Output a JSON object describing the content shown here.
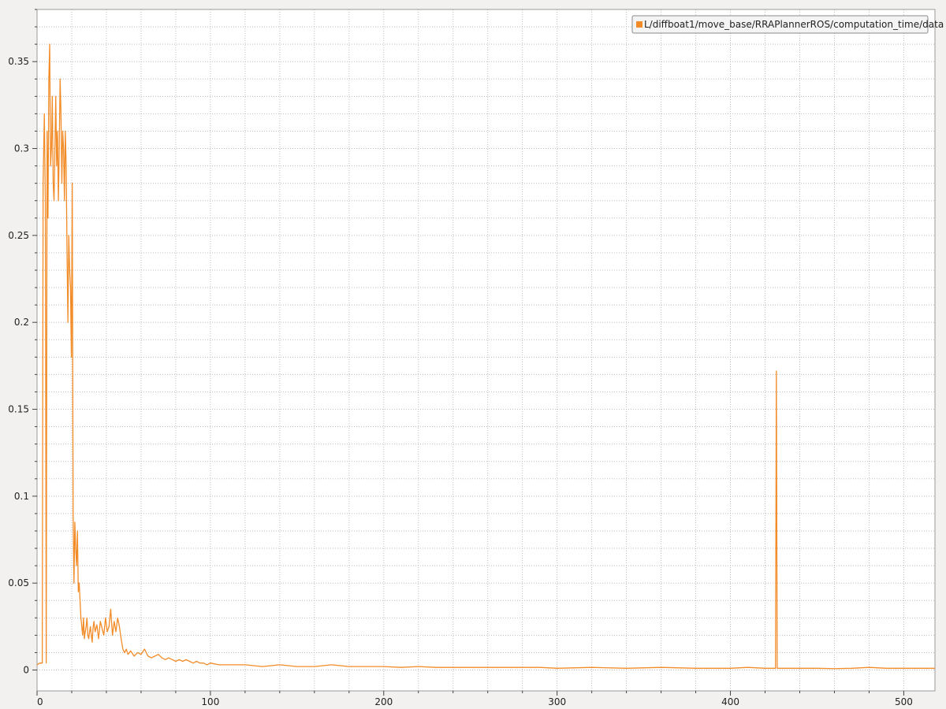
{
  "chart_data": {
    "type": "line",
    "title": "",
    "xlabel": "",
    "ylabel": "",
    "xlim": [
      0,
      518
    ],
    "ylim": [
      -0.012,
      0.38
    ],
    "grid": true,
    "legend_placement": "top-right",
    "x_ticks": [
      0,
      100,
      200,
      300,
      400,
      500
    ],
    "y_ticks": [
      0,
      0.05,
      0.1,
      0.15,
      0.2,
      0.25,
      0.3,
      0.35
    ],
    "x_tick_labels": [
      "0",
      "100",
      "200",
      "300",
      "400",
      "500"
    ],
    "y_tick_labels": [
      "0",
      "0.05",
      "0.1",
      "0.15",
      "0.2",
      "0.25",
      "0.3",
      "0.35"
    ],
    "series": [
      {
        "name": "L/diffboat1/move_base/RRAPlannerROS/computation_time/data",
        "color": "#f28c28",
        "x": [
          0,
          1.5,
          3,
          3.5,
          4.2,
          4.8,
          5.3,
          5.8,
          6.3,
          6.8,
          7.3,
          7.8,
          8.3,
          8.8,
          9.3,
          9.8,
          10.3,
          10.8,
          11.3,
          11.8,
          12.3,
          12.8,
          13.3,
          13.8,
          14.3,
          14.8,
          15.3,
          15.8,
          16.3,
          16.8,
          17.3,
          17.8,
          18.3,
          18.8,
          19.3,
          19.8,
          20.3,
          20.8,
          21.3,
          21.8,
          22.3,
          22.8,
          23.3,
          23.8,
          24.3,
          24.8,
          25.3,
          25.8,
          26.3,
          26.8,
          27.3,
          27.8,
          28.3,
          28.8,
          29.3,
          29.8,
          30.3,
          30.8,
          31.3,
          31.8,
          32.3,
          32.8,
          33.5,
          34.5,
          35.5,
          36.5,
          37.5,
          38.5,
          39.5,
          40.5,
          41.5,
          42.5,
          43.5,
          44.5,
          45.5,
          46.5,
          47.5,
          48.5,
          49.5,
          50.5,
          51.5,
          52.5,
          54,
          56,
          58,
          60,
          62,
          64,
          66,
          68,
          70,
          72,
          74,
          76,
          78,
          80,
          82,
          84,
          86,
          88,
          90,
          92,
          94,
          96,
          98,
          100,
          105,
          110,
          120,
          130,
          140,
          150,
          160,
          170,
          180,
          190,
          200,
          210,
          220,
          230,
          240,
          250,
          260,
          270,
          280,
          290,
          300,
          320,
          340,
          360,
          380,
          400,
          410,
          420,
          425,
          426,
          426.5,
          427,
          427.5,
          428,
          430,
          440,
          450,
          460,
          470,
          480,
          490,
          500,
          510,
          518
        ],
        "values": [
          0.003,
          0.004,
          0.004,
          0.28,
          0.32,
          0.27,
          0.004,
          0.31,
          0.26,
          0.34,
          0.36,
          0.29,
          0.3,
          0.33,
          0.28,
          0.27,
          0.3,
          0.33,
          0.29,
          0.31,
          0.27,
          0.3,
          0.34,
          0.32,
          0.28,
          0.31,
          0.3,
          0.27,
          0.31,
          0.29,
          0.24,
          0.2,
          0.25,
          0.23,
          0.22,
          0.18,
          0.28,
          0.09,
          0.05,
          0.085,
          0.07,
          0.06,
          0.08,
          0.045,
          0.05,
          0.04,
          0.03,
          0.025,
          0.02,
          0.03,
          0.018,
          0.022,
          0.025,
          0.03,
          0.02,
          0.018,
          0.022,
          0.025,
          0.02,
          0.016,
          0.024,
          0.028,
          0.022,
          0.026,
          0.018,
          0.028,
          0.024,
          0.02,
          0.03,
          0.022,
          0.025,
          0.035,
          0.02,
          0.028,
          0.022,
          0.03,
          0.025,
          0.018,
          0.012,
          0.01,
          0.012,
          0.009,
          0.011,
          0.008,
          0.01,
          0.009,
          0.012,
          0.008,
          0.007,
          0.008,
          0.009,
          0.007,
          0.006,
          0.007,
          0.006,
          0.005,
          0.006,
          0.005,
          0.006,
          0.005,
          0.004,
          0.005,
          0.004,
          0.004,
          0.003,
          0.004,
          0.003,
          0.003,
          0.003,
          0.002,
          0.003,
          0.002,
          0.002,
          0.003,
          0.002,
          0.002,
          0.002,
          0.0015,
          0.002,
          0.0015,
          0.0015,
          0.0015,
          0.0015,
          0.0015,
          0.0015,
          0.0015,
          0.001,
          0.0015,
          0.001,
          0.0015,
          0.001,
          0.001,
          0.0015,
          0.001,
          0.001,
          0.001,
          0.172,
          0.001,
          0.001,
          0.001,
          0.001,
          0.001,
          0.001,
          0.0008,
          0.001,
          0.0015,
          0.001,
          0.001,
          0.001,
          0.001
        ]
      }
    ]
  }
}
